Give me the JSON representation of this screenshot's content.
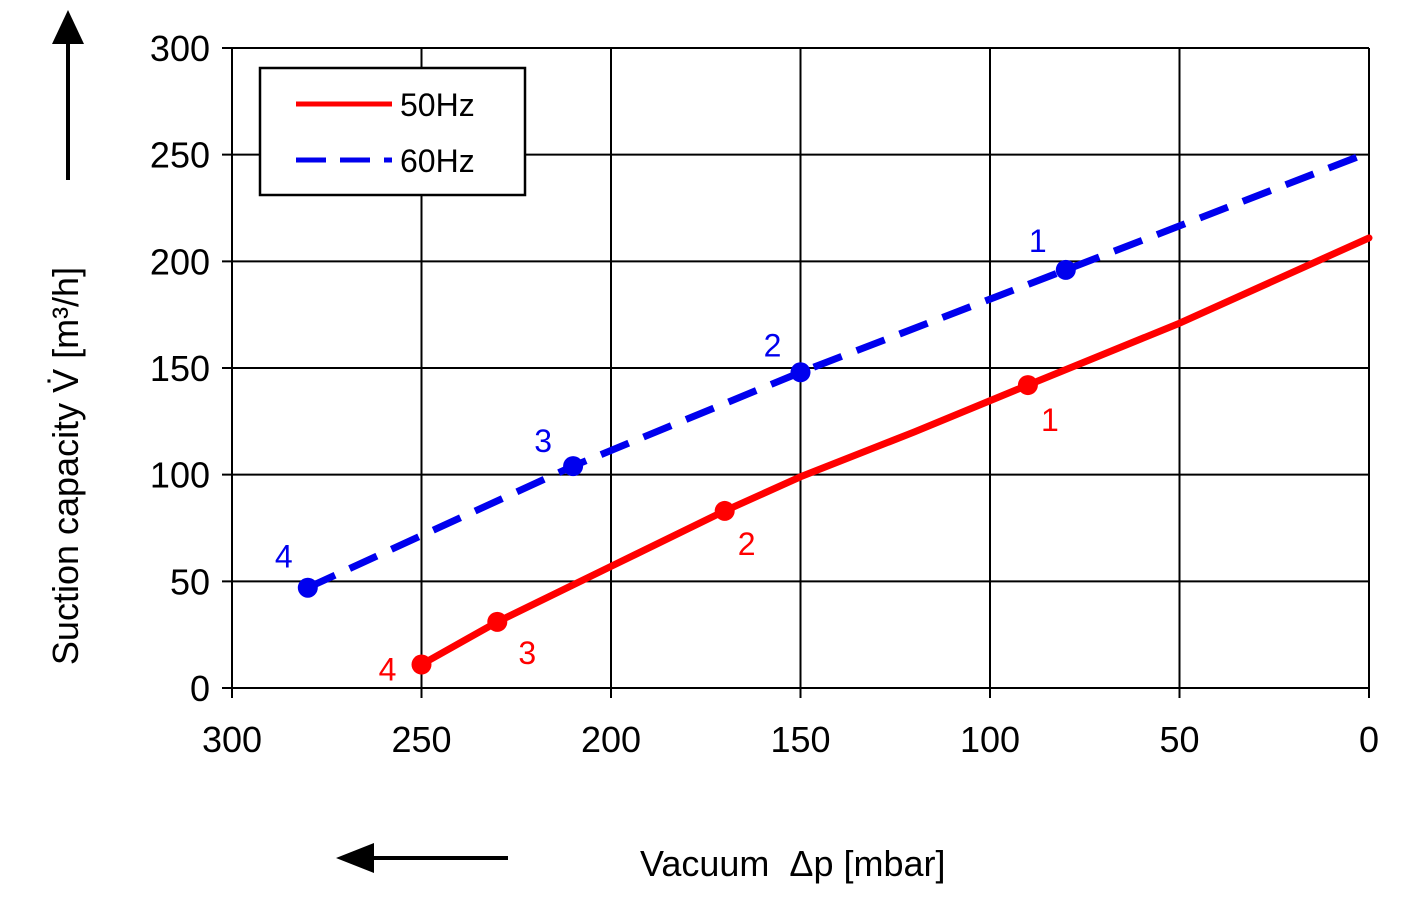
{
  "chart_data": {
    "type": "line",
    "title": "",
    "xlabel": "Vacuum  Δp [mbar]",
    "ylabel": "Suction capacity V̇ [m³/h]",
    "xlim": [
      300,
      0
    ],
    "ylim": [
      0,
      300
    ],
    "x_ticks": [
      300,
      250,
      200,
      150,
      100,
      50,
      0
    ],
    "y_ticks": [
      0,
      50,
      100,
      150,
      200,
      250,
      300
    ],
    "grid": true,
    "legend_position": "top-left",
    "series": [
      {
        "name": "50Hz",
        "color": "#ff0000",
        "style": "solid",
        "x": [
          250,
          230,
          200,
          170,
          150,
          120,
          90,
          50,
          0
        ],
        "y": [
          11,
          31,
          57,
          83,
          99,
          120,
          142,
          171,
          211
        ],
        "markers": [
          {
            "x": 90,
            "y": 142,
            "label": "1"
          },
          {
            "x": 170,
            "y": 83,
            "label": "2"
          },
          {
            "x": 230,
            "y": 31,
            "label": "3"
          },
          {
            "x": 250,
            "y": 11,
            "label": "4"
          }
        ]
      },
      {
        "name": "60Hz",
        "color": "#0000ee",
        "style": "dashed",
        "x": [
          280,
          210,
          150,
          80,
          0
        ],
        "y": [
          47,
          104,
          148,
          196,
          251
        ],
        "markers": [
          {
            "x": 80,
            "y": 196,
            "label": "1"
          },
          {
            "x": 150,
            "y": 148,
            "label": "2"
          },
          {
            "x": 210,
            "y": 104,
            "label": "3"
          },
          {
            "x": 280,
            "y": 47,
            "label": "4"
          }
        ]
      }
    ]
  }
}
